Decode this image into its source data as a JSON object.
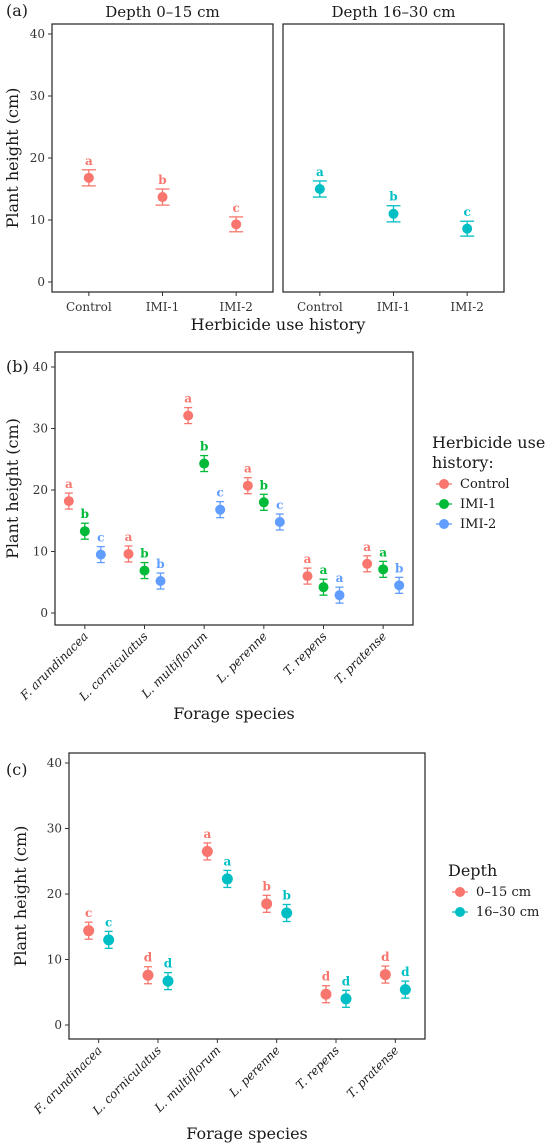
{
  "colors": {
    "Control": "#F8766D",
    "IMI-1": "#00BA38",
    "IMI-2": "#619CFF",
    "0–15 cm": "#F8766D",
    "16–30 cm": "#00BFC4"
  },
  "chart_data": [
    {
      "type": "scatter",
      "panel_label": "(a)",
      "ylabel": "Plant height (cm)",
      "xlabel": "Herbicide use history",
      "ylim": [
        0,
        40
      ],
      "yticks": [
        0,
        10,
        20,
        30,
        40
      ],
      "facets": [
        {
          "strip": "Depth 0–15 cm",
          "categories": [
            "Control",
            "IMI-1",
            "IMI-2"
          ],
          "color": "#F8766D",
          "values": [
            16.8,
            13.7,
            9.3
          ],
          "err": [
            1.3,
            1.3,
            1.2
          ],
          "letters": [
            "a",
            "b",
            "c"
          ]
        },
        {
          "strip": "Depth 16–30 cm",
          "categories": [
            "Control",
            "IMI-1",
            "IMI-2"
          ],
          "color": "#00BFC4",
          "values": [
            15.0,
            11.0,
            8.6
          ],
          "err": [
            1.3,
            1.3,
            1.2
          ],
          "letters": [
            "a",
            "b",
            "c"
          ]
        }
      ]
    },
    {
      "type": "scatter",
      "panel_label": "(b)",
      "ylabel": "Plant height (cm)",
      "xlabel": "Forage species",
      "ylim": [
        0,
        40
      ],
      "yticks": [
        0,
        10,
        20,
        30,
        40
      ],
      "categories": [
        "F. arundinacea",
        "L. corniculatus",
        "L. multiflorum",
        "L. perenne",
        "T. repens",
        "T. pratense"
      ],
      "legend_title": [
        "Herbicide use",
        "history:"
      ],
      "legend_position": "right",
      "series": [
        {
          "name": "Control",
          "color": "#F8766D",
          "values": [
            18.2,
            9.6,
            32.1,
            20.7,
            6.0,
            8.0
          ],
          "err": [
            1.3,
            1.3,
            1.3,
            1.3,
            1.3,
            1.3
          ],
          "letters": [
            "a",
            "a",
            "a",
            "a",
            "a",
            "a"
          ]
        },
        {
          "name": "IMI-1",
          "color": "#00BA38",
          "values": [
            13.3,
            6.9,
            24.3,
            18.0,
            4.2,
            7.1
          ],
          "err": [
            1.3,
            1.3,
            1.3,
            1.3,
            1.3,
            1.3
          ],
          "letters": [
            "b",
            "b",
            "b",
            "b",
            "a",
            "a"
          ]
        },
        {
          "name": "IMI-2",
          "color": "#619CFF",
          "values": [
            9.5,
            5.2,
            16.8,
            14.8,
            2.9,
            4.5
          ],
          "err": [
            1.3,
            1.3,
            1.3,
            1.3,
            1.3,
            1.3
          ],
          "letters": [
            "c",
            "b",
            "c",
            "c",
            "a",
            "b"
          ]
        }
      ]
    },
    {
      "type": "scatter",
      "panel_label": "(c)",
      "ylabel": "Plant height (cm)",
      "xlabel": "Forage species",
      "ylim": [
        0,
        40
      ],
      "yticks": [
        0,
        10,
        20,
        30,
        40
      ],
      "categories": [
        "F. arundinacea",
        "L. corniculatus",
        "L. multiflorum",
        "L. perenne",
        "T. repens",
        "T. pratense"
      ],
      "legend_title": [
        "Depth"
      ],
      "legend_position": "right",
      "series": [
        {
          "name": "0–15 cm",
          "color": "#F8766D",
          "values": [
            14.4,
            7.6,
            26.5,
            18.5,
            4.7,
            7.7
          ],
          "err": [
            1.3,
            1.3,
            1.3,
            1.3,
            1.3,
            1.3
          ],
          "letters": [
            "c",
            "d",
            "a",
            "b",
            "d",
            "d"
          ]
        },
        {
          "name": "16–30 cm",
          "color": "#00BFC4",
          "values": [
            13.0,
            6.7,
            22.3,
            17.1,
            4.0,
            5.4
          ],
          "err": [
            1.3,
            1.3,
            1.3,
            1.3,
            1.3,
            1.3
          ],
          "letters": [
            "c",
            "d",
            "a",
            "b",
            "d",
            "d"
          ]
        }
      ]
    }
  ]
}
